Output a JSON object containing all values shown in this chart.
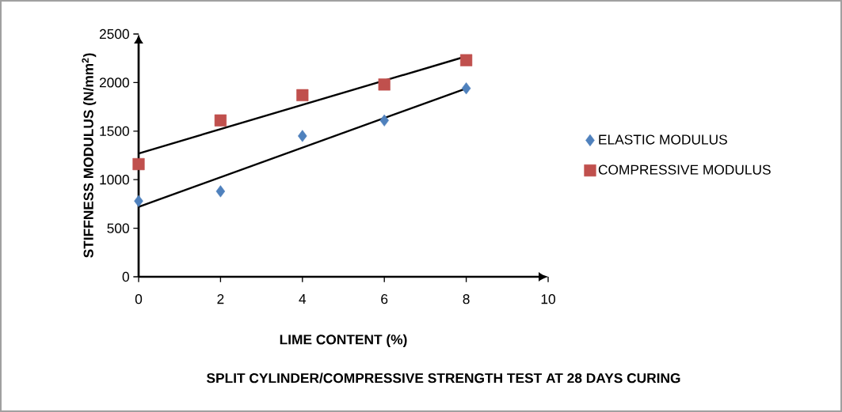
{
  "chart_data": {
    "type": "scatter",
    "title": "SPLIT CYLINDER/COMPRESSIVE STRENGTH TEST AT 28 DAYS CURING",
    "xlabel": "LIME CONTENT (%)",
    "ylabel": "STIFFNESS MODULUS (N/mm$^{2}$)",
    "xlim": [
      0,
      10
    ],
    "ylim": [
      0,
      2500
    ],
    "xticks": [
      0,
      2,
      4,
      6,
      8,
      10
    ],
    "yticks": [
      0,
      500,
      1000,
      1500,
      2000,
      2500
    ],
    "grid": false,
    "legend": "right",
    "series": [
      {
        "name": "ELASTIC MODULUS",
        "color": "#4f81bd",
        "marker": "diamond",
        "x": [
          0,
          2,
          4,
          6,
          8
        ],
        "values": [
          780,
          880,
          1450,
          1610,
          1940
        ]
      },
      {
        "name": "COMPRESSIVE MODULUS",
        "color": "#c0504d",
        "marker": "square",
        "x": [
          0,
          2,
          4,
          6,
          8
        ],
        "values": [
          1160,
          1610,
          1870,
          1980,
          2230
        ]
      },
      {
        "type": "line",
        "color": "#000000",
        "marker": "none",
        "line_style": "solid",
        "x": [
          0,
          8
        ],
        "values": [
          720,
          1940
        ]
      },
      {
        "type": "line",
        "color": "#000000",
        "marker": "none",
        "line_style": "solid",
        "x": [
          0,
          8
        ],
        "values": [
          1270,
          2270
        ]
      }
    ]
  }
}
